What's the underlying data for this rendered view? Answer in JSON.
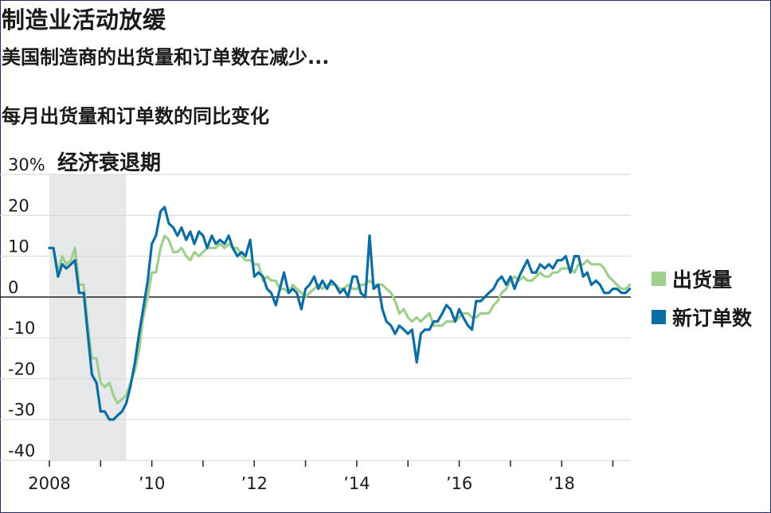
{
  "header": {
    "title": "制造业活动放缓",
    "subtitle": "美国制造商的出货量和订单数在减少...",
    "chart_label": "每月出货量和订单数的同比变化"
  },
  "colors": {
    "shipments": "#9fcf8e",
    "orders": "#0a6ea4",
    "recession_band": "#e6e8ea",
    "grid": "#d6d6d6",
    "zero_line": "#222222",
    "text": "#1a1a1a"
  },
  "chart_data": {
    "type": "line",
    "ylim": [
      -40,
      30
    ],
    "xlim": [
      2008.0,
      2019.35
    ],
    "y_ticks": [
      {
        "value": 30,
        "label": "30%"
      },
      {
        "value": 20,
        "label": "20"
      },
      {
        "value": 10,
        "label": "10"
      },
      {
        "value": 0,
        "label": "0"
      },
      {
        "value": -10,
        "label": "-10"
      },
      {
        "value": -20,
        "label": "-20"
      },
      {
        "value": -30,
        "label": "-30"
      },
      {
        "value": -40,
        "label": "-40"
      }
    ],
    "x_tick_labels": [
      {
        "value": 2008,
        "label": "2008"
      },
      {
        "value": 2010,
        "label": "’10"
      },
      {
        "value": 2012,
        "label": "’12"
      },
      {
        "value": 2014,
        "label": "’14"
      },
      {
        "value": 2016,
        "label": "’16"
      },
      {
        "value": 2018,
        "label": "’18"
      }
    ],
    "x_minor_ticks": [
      2009,
      2011,
      2013,
      2015,
      2017,
      2019
    ],
    "recession": {
      "start": 2008.0,
      "end": 2009.5,
      "label": "经济衰退期"
    },
    "series": [
      {
        "name": "出货量",
        "key": "shipments",
        "points": [
          [
            2008.0,
            12
          ],
          [
            2008.08,
            12
          ],
          [
            2008.17,
            6
          ],
          [
            2008.25,
            10
          ],
          [
            2008.33,
            8
          ],
          [
            2008.42,
            9
          ],
          [
            2008.5,
            12
          ],
          [
            2008.58,
            3
          ],
          [
            2008.67,
            3
          ],
          [
            2008.75,
            -7
          ],
          [
            2008.83,
            -15
          ],
          [
            2008.92,
            -15
          ],
          [
            2009.0,
            -21
          ],
          [
            2009.08,
            -22
          ],
          [
            2009.17,
            -21
          ],
          [
            2009.25,
            -24
          ],
          [
            2009.33,
            -26
          ],
          [
            2009.42,
            -25
          ],
          [
            2009.5,
            -24
          ],
          [
            2009.58,
            -21
          ],
          [
            2009.67,
            -18
          ],
          [
            2009.75,
            -13
          ],
          [
            2009.83,
            -5
          ],
          [
            2009.92,
            0
          ],
          [
            2010.0,
            6
          ],
          [
            2010.08,
            6
          ],
          [
            2010.17,
            12
          ],
          [
            2010.25,
            15
          ],
          [
            2010.33,
            14
          ],
          [
            2010.42,
            11
          ],
          [
            2010.5,
            11
          ],
          [
            2010.58,
            12
          ],
          [
            2010.67,
            10
          ],
          [
            2010.75,
            9
          ],
          [
            2010.83,
            11
          ],
          [
            2010.92,
            10
          ],
          [
            2011.0,
            11
          ],
          [
            2011.08,
            12
          ],
          [
            2011.17,
            12
          ],
          [
            2011.25,
            12
          ],
          [
            2011.33,
            13
          ],
          [
            2011.42,
            12
          ],
          [
            2011.5,
            13
          ],
          [
            2011.58,
            12
          ],
          [
            2011.67,
            12
          ],
          [
            2011.75,
            10
          ],
          [
            2011.83,
            9
          ],
          [
            2011.92,
            9
          ],
          [
            2012.0,
            8
          ],
          [
            2012.08,
            8
          ],
          [
            2012.17,
            4
          ],
          [
            2012.25,
            5
          ],
          [
            2012.33,
            4
          ],
          [
            2012.42,
            4
          ],
          [
            2012.5,
            2
          ],
          [
            2012.58,
            2
          ],
          [
            2012.67,
            1
          ],
          [
            2012.75,
            3
          ],
          [
            2012.83,
            2
          ],
          [
            2012.92,
            1
          ],
          [
            2013.0,
            0
          ],
          [
            2013.08,
            1
          ],
          [
            2013.17,
            2
          ],
          [
            2013.25,
            3
          ],
          [
            2013.33,
            2
          ],
          [
            2013.42,
            3
          ],
          [
            2013.5,
            3
          ],
          [
            2013.58,
            3
          ],
          [
            2013.67,
            2
          ],
          [
            2013.75,
            2
          ],
          [
            2013.83,
            3
          ],
          [
            2013.92,
            2
          ],
          [
            2014.0,
            2
          ],
          [
            2014.08,
            3
          ],
          [
            2014.17,
            3
          ],
          [
            2014.25,
            4
          ],
          [
            2014.33,
            3
          ],
          [
            2014.42,
            3
          ],
          [
            2014.5,
            3
          ],
          [
            2014.58,
            2
          ],
          [
            2014.67,
            1
          ],
          [
            2014.75,
            -1
          ],
          [
            2014.83,
            -4
          ],
          [
            2014.92,
            -3
          ],
          [
            2015.0,
            -5
          ],
          [
            2015.08,
            -6
          ],
          [
            2015.17,
            -5
          ],
          [
            2015.25,
            -6
          ],
          [
            2015.33,
            -5
          ],
          [
            2015.42,
            -4
          ],
          [
            2015.5,
            -7
          ],
          [
            2015.58,
            -7
          ],
          [
            2015.67,
            -7
          ],
          [
            2015.75,
            -6
          ],
          [
            2015.83,
            -6
          ],
          [
            2015.92,
            -6
          ],
          [
            2016.0,
            -5
          ],
          [
            2016.08,
            -4
          ],
          [
            2016.17,
            -4
          ],
          [
            2016.25,
            -5
          ],
          [
            2016.33,
            -5
          ],
          [
            2016.42,
            -4
          ],
          [
            2016.5,
            -4
          ],
          [
            2016.58,
            -4
          ],
          [
            2016.67,
            -2
          ],
          [
            2016.75,
            -1
          ],
          [
            2016.83,
            1
          ],
          [
            2016.92,
            2
          ],
          [
            2017.0,
            4
          ],
          [
            2017.08,
            5
          ],
          [
            2017.17,
            4
          ],
          [
            2017.25,
            5
          ],
          [
            2017.33,
            4
          ],
          [
            2017.42,
            4
          ],
          [
            2017.5,
            5
          ],
          [
            2017.58,
            6
          ],
          [
            2017.67,
            5
          ],
          [
            2017.75,
            5
          ],
          [
            2017.83,
            6
          ],
          [
            2017.92,
            6
          ],
          [
            2018.0,
            7
          ],
          [
            2018.08,
            7
          ],
          [
            2018.17,
            7
          ],
          [
            2018.25,
            6
          ],
          [
            2018.33,
            8
          ],
          [
            2018.42,
            8
          ],
          [
            2018.5,
            9
          ],
          [
            2018.58,
            8
          ],
          [
            2018.67,
            8
          ],
          [
            2018.75,
            8
          ],
          [
            2018.83,
            7
          ],
          [
            2018.92,
            5
          ],
          [
            2019.0,
            4
          ],
          [
            2019.08,
            3
          ],
          [
            2019.17,
            2
          ],
          [
            2019.25,
            2
          ],
          [
            2019.33,
            3
          ]
        ]
      },
      {
        "name": "新订单数",
        "key": "orders",
        "points": [
          [
            2008.0,
            12
          ],
          [
            2008.08,
            12
          ],
          [
            2008.17,
            5
          ],
          [
            2008.25,
            8
          ],
          [
            2008.33,
            7
          ],
          [
            2008.42,
            8
          ],
          [
            2008.5,
            9
          ],
          [
            2008.58,
            1
          ],
          [
            2008.67,
            1
          ],
          [
            2008.75,
            -9
          ],
          [
            2008.83,
            -19
          ],
          [
            2008.92,
            -21
          ],
          [
            2009.0,
            -28
          ],
          [
            2009.08,
            -28
          ],
          [
            2009.17,
            -30
          ],
          [
            2009.25,
            -30
          ],
          [
            2009.33,
            -29
          ],
          [
            2009.42,
            -28
          ],
          [
            2009.5,
            -26
          ],
          [
            2009.58,
            -22
          ],
          [
            2009.67,
            -16
          ],
          [
            2009.75,
            -9
          ],
          [
            2009.83,
            -3
          ],
          [
            2009.92,
            4
          ],
          [
            2010.0,
            13
          ],
          [
            2010.08,
            15
          ],
          [
            2010.17,
            21
          ],
          [
            2010.25,
            22
          ],
          [
            2010.33,
            18
          ],
          [
            2010.42,
            17
          ],
          [
            2010.5,
            15
          ],
          [
            2010.58,
            17
          ],
          [
            2010.67,
            14
          ],
          [
            2010.75,
            16
          ],
          [
            2010.83,
            13
          ],
          [
            2010.92,
            16
          ],
          [
            2011.0,
            15
          ],
          [
            2011.08,
            12
          ],
          [
            2011.17,
            15
          ],
          [
            2011.25,
            13
          ],
          [
            2011.33,
            14
          ],
          [
            2011.42,
            13
          ],
          [
            2011.5,
            15
          ],
          [
            2011.58,
            12
          ],
          [
            2011.67,
            10
          ],
          [
            2011.75,
            11
          ],
          [
            2011.83,
            10
          ],
          [
            2011.92,
            14
          ],
          [
            2012.0,
            5
          ],
          [
            2012.08,
            6
          ],
          [
            2012.17,
            5
          ],
          [
            2012.25,
            2
          ],
          [
            2012.33,
            1
          ],
          [
            2012.42,
            -2
          ],
          [
            2012.5,
            2
          ],
          [
            2012.58,
            6
          ],
          [
            2012.67,
            1
          ],
          [
            2012.75,
            2
          ],
          [
            2012.83,
            1
          ],
          [
            2012.92,
            -3
          ],
          [
            2013.0,
            2
          ],
          [
            2013.08,
            3
          ],
          [
            2013.17,
            5
          ],
          [
            2013.25,
            2
          ],
          [
            2013.33,
            4
          ],
          [
            2013.42,
            2
          ],
          [
            2013.5,
            4
          ],
          [
            2013.58,
            3
          ],
          [
            2013.67,
            1
          ],
          [
            2013.75,
            2
          ],
          [
            2013.83,
            0
          ],
          [
            2013.92,
            5
          ],
          [
            2014.0,
            5
          ],
          [
            2014.08,
            1
          ],
          [
            2014.17,
            0
          ],
          [
            2014.25,
            15
          ],
          [
            2014.33,
            2
          ],
          [
            2014.42,
            3
          ],
          [
            2014.5,
            -3
          ],
          [
            2014.58,
            -6
          ],
          [
            2014.67,
            -7
          ],
          [
            2014.75,
            -9
          ],
          [
            2014.83,
            -7
          ],
          [
            2014.92,
            -8
          ],
          [
            2015.0,
            -9
          ],
          [
            2015.08,
            -8
          ],
          [
            2015.17,
            -16
          ],
          [
            2015.25,
            -9
          ],
          [
            2015.33,
            -8
          ],
          [
            2015.42,
            -8
          ],
          [
            2015.5,
            -6
          ],
          [
            2015.58,
            -6
          ],
          [
            2015.67,
            -4
          ],
          [
            2015.75,
            -2
          ],
          [
            2015.83,
            -3
          ],
          [
            2015.92,
            -6
          ],
          [
            2016.0,
            -3
          ],
          [
            2016.08,
            -5
          ],
          [
            2016.17,
            -7
          ],
          [
            2016.25,
            -8
          ],
          [
            2016.33,
            -1
          ],
          [
            2016.42,
            -1
          ],
          [
            2016.5,
            0
          ],
          [
            2016.58,
            1
          ],
          [
            2016.67,
            2
          ],
          [
            2016.75,
            4
          ],
          [
            2016.83,
            5
          ],
          [
            2016.92,
            3
          ],
          [
            2017.0,
            5
          ],
          [
            2017.08,
            2
          ],
          [
            2017.17,
            5
          ],
          [
            2017.25,
            7
          ],
          [
            2017.33,
            9
          ],
          [
            2017.42,
            6
          ],
          [
            2017.5,
            6
          ],
          [
            2017.58,
            8
          ],
          [
            2017.67,
            7
          ],
          [
            2017.75,
            8
          ],
          [
            2017.83,
            7
          ],
          [
            2017.92,
            9
          ],
          [
            2018.0,
            9
          ],
          [
            2018.08,
            10
          ],
          [
            2018.17,
            6
          ],
          [
            2018.25,
            10
          ],
          [
            2018.33,
            10
          ],
          [
            2018.42,
            5
          ],
          [
            2018.5,
            6
          ],
          [
            2018.58,
            3
          ],
          [
            2018.67,
            4
          ],
          [
            2018.75,
            3
          ],
          [
            2018.83,
            1
          ],
          [
            2018.92,
            1
          ],
          [
            2019.0,
            2
          ],
          [
            2019.08,
            2
          ],
          [
            2019.17,
            1
          ],
          [
            2019.25,
            1
          ],
          [
            2019.33,
            2
          ]
        ]
      }
    ]
  }
}
